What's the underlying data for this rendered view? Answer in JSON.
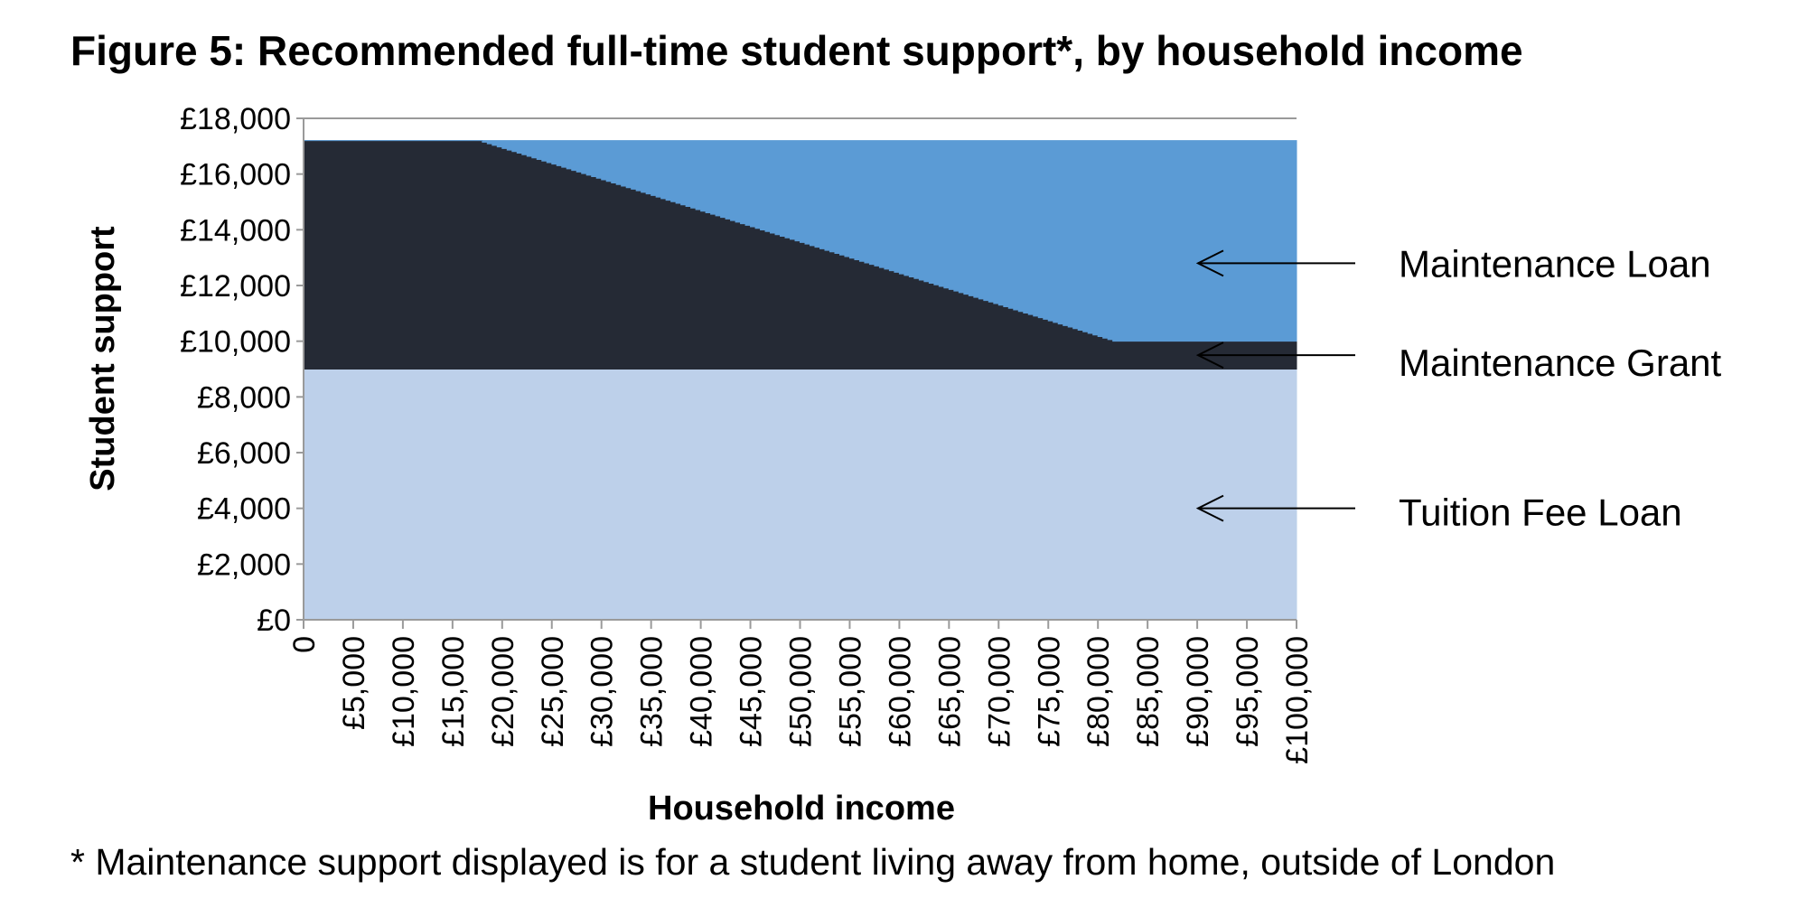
{
  "chart_data": {
    "type": "area",
    "title": "Figure 5: Recommended full-time student support*, by household income",
    "xlabel": "Household income",
    "ylabel": "Student support",
    "footnote": "* Maintenance support displayed is for a student living away from home, outside of London",
    "xlim": [
      0,
      100000
    ],
    "ylim": [
      0,
      18000
    ],
    "x_tick_values": [
      0,
      5000,
      10000,
      15000,
      20000,
      25000,
      30000,
      35000,
      40000,
      45000,
      50000,
      55000,
      60000,
      65000,
      70000,
      75000,
      80000,
      85000,
      90000,
      95000,
      100000
    ],
    "x_tick_labels": [
      "0",
      "£5,000",
      "£10,000",
      "£15,000",
      "£20,000",
      "£25,000",
      "£30,000",
      "£35,000",
      "£40,000",
      "£45,000",
      "£50,000",
      "£55,000",
      "£60,000",
      "£65,000",
      "£70,000",
      "£75,000",
      "£80,000",
      "£85,000",
      "£90,000",
      "£95,000",
      "£100,000"
    ],
    "y_tick_values": [
      0,
      2000,
      4000,
      6000,
      8000,
      10000,
      12000,
      14000,
      16000,
      18000
    ],
    "y_tick_labels": [
      "£0",
      "£2,000",
      "£4,000",
      "£6,000",
      "£8,000",
      "£10,000",
      "£12,000",
      "£14,000",
      "£16,000",
      "£18,000"
    ],
    "stacked": true,
    "grid": false,
    "legend_placement": "right",
    "series": [
      {
        "name": "Tuition Fee Loan",
        "color": "#bdd0ea",
        "x": [
          0,
          100000
        ],
        "y": [
          9000,
          9000
        ]
      },
      {
        "name": "Maintenance Grant",
        "color": "#252a35",
        "x": [
          0,
          17500,
          81500,
          100000
        ],
        "y": [
          8200,
          8200,
          1000,
          1000
        ]
      },
      {
        "name": "Maintenance Loan",
        "color": "#5b9bd5",
        "x": [
          0,
          17500,
          81500,
          100000
        ],
        "y": [
          0,
          0,
          7200,
          7200
        ]
      }
    ],
    "legend": [
      "Maintenance Loan",
      "Maintenance Grant",
      "Tuition Fee Loan"
    ]
  }
}
